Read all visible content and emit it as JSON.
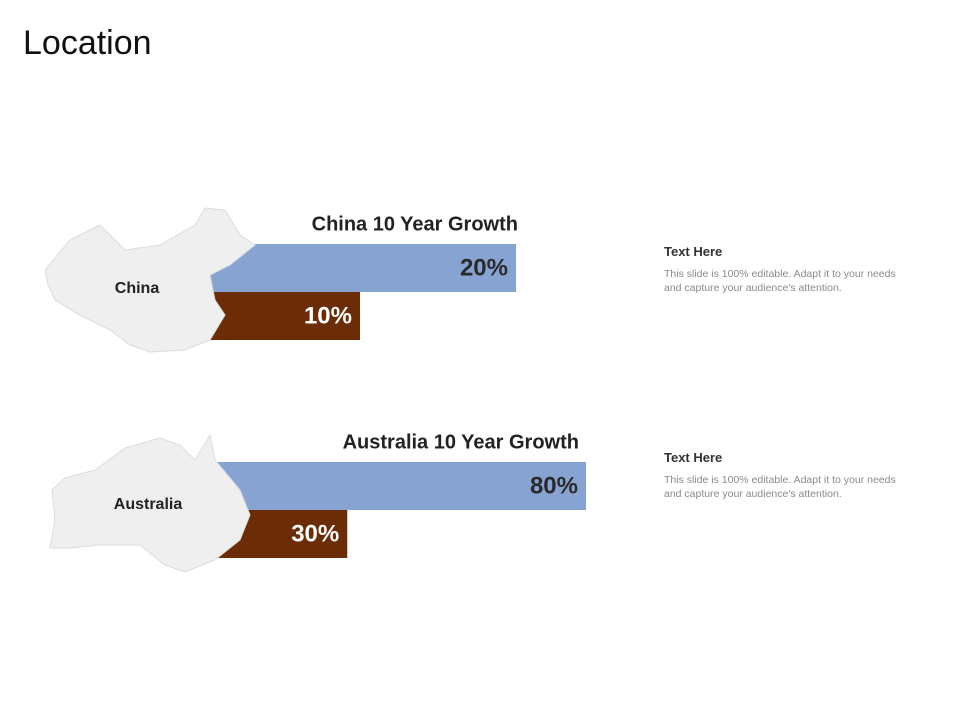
{
  "title": "Location",
  "chart_data": [
    {
      "type": "bar",
      "title": "China 10 Year Growth",
      "region": "China",
      "values": [
        20,
        10
      ],
      "value_labels": [
        "20%",
        "10%"
      ],
      "colors": [
        "#87a3d2",
        "#6b2c06"
      ]
    },
    {
      "type": "bar",
      "title": "Australia 10 Year Growth",
      "region": "Australia",
      "values": [
        80,
        30
      ],
      "value_labels": [
        "80%",
        "30%"
      ],
      "colors": [
        "#87a3d2",
        "#6b2c06"
      ]
    }
  ],
  "notes": [
    {
      "heading": "Text Here",
      "body": "This slide is 100% editable. Adapt it to your needs and capture your audience's attention."
    },
    {
      "heading": "Text Here",
      "body": "This slide is 100% editable. Adapt it to your needs and capture your audience's attention."
    }
  ]
}
